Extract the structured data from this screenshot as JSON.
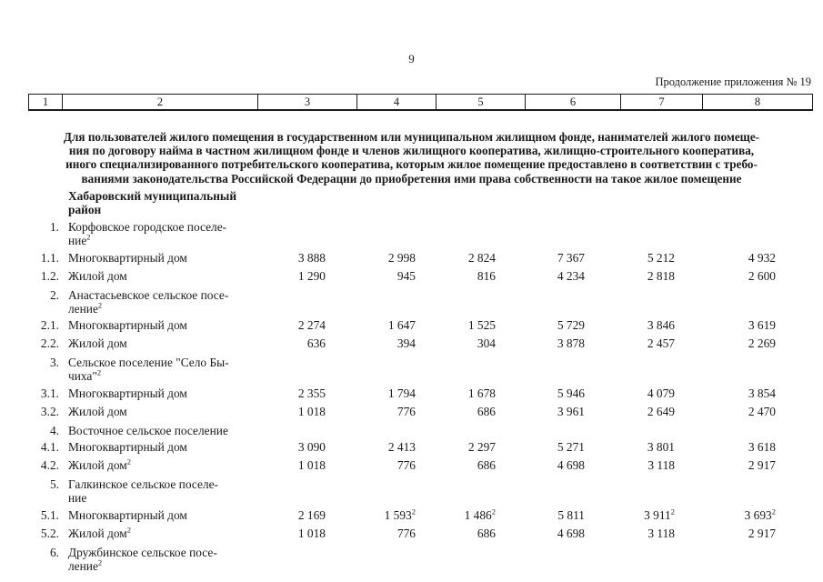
{
  "page": {
    "number": "9",
    "continuation": "Продолжение приложения № 19"
  },
  "header_row": [
    "1",
    "2",
    "3",
    "4",
    "5",
    "6",
    "7",
    "8"
  ],
  "intro": [
    "Для пользователей жилого помещения в государственном или муниципальном жилищном фонде, нанимателей жилого помеще-",
    "ния по договору найма в частном жилищном фонде и членов жилищного кооператива, жилищно-строительного кооператива,",
    "иного специализированного потребительского кооператива, которым жилое помещение предоставлено в соответствии с требо-",
    "ваниями законодательства Российской Федерации до приобретения ими права собственности на такое жилое помещение"
  ],
  "table": {
    "rows": [
      {
        "type": "section",
        "bold": true,
        "num": "",
        "name_lines": [
          "Хабаровский муниципальный",
          "район"
        ],
        "values": []
      },
      {
        "type": "section",
        "num": "1.",
        "name_lines": [
          "Корфовское городское поселе-",
          "ние^2"
        ],
        "values": []
      },
      {
        "type": "data",
        "num": "1.1.",
        "name_lines": [
          "Многоквартирный дом"
        ],
        "values": [
          "3 888",
          "2 998",
          "2 824",
          "7 367",
          "5 212",
          "4 932"
        ]
      },
      {
        "type": "data",
        "num": "1.2.",
        "name_lines": [
          "Жилой дом"
        ],
        "values": [
          "1 290",
          "945",
          "816",
          "4 234",
          "2 818",
          "2 600"
        ]
      },
      {
        "type": "section",
        "num": "2.",
        "name_lines": [
          "Анастасьевское сельское посе-",
          "ление^2"
        ],
        "values": []
      },
      {
        "type": "data",
        "num": "2.1.",
        "name_lines": [
          "Многоквартирный дом"
        ],
        "values": [
          "2 274",
          "1 647",
          "1 525",
          "5 729",
          "3 846",
          "3 619"
        ]
      },
      {
        "type": "data",
        "num": "2.2.",
        "name_lines": [
          "Жилой дом"
        ],
        "values": [
          "636",
          "394",
          "304",
          "3 878",
          "2 457",
          "2 269"
        ]
      },
      {
        "type": "section",
        "num": "3.",
        "name_lines": [
          "Сельское поселение \"Село Бы-",
          "чиха\"^2"
        ],
        "values": []
      },
      {
        "type": "data",
        "num": "3.1.",
        "name_lines": [
          "Многоквартирный дом"
        ],
        "values": [
          "2 355",
          "1 794",
          "1 678",
          "5 946",
          "4 079",
          "3 854"
        ]
      },
      {
        "type": "data",
        "num": "3.2.",
        "name_lines": [
          "Жилой дом"
        ],
        "values": [
          "1 018",
          "776",
          "686",
          "3 961",
          "2 649",
          "2 470"
        ]
      },
      {
        "type": "section",
        "num": "4.",
        "name_lines": [
          "Восточное сельское поселение"
        ],
        "values": []
      },
      {
        "type": "data",
        "num": "4.1.",
        "name_lines": [
          "Многоквартирный дом"
        ],
        "values": [
          "3 090",
          "2 413",
          "2 297",
          "5 271",
          "3 801",
          "3 618"
        ]
      },
      {
        "type": "data",
        "num": "4.2.",
        "name_lines": [
          "Жилой дом^2"
        ],
        "values": [
          "1 018",
          "776",
          "686",
          "4 698",
          "3 118",
          "2 917"
        ]
      },
      {
        "type": "section",
        "num": "5.",
        "name_lines": [
          "Галкинское сельское поселе-",
          "ние"
        ],
        "values": []
      },
      {
        "type": "data",
        "num": "5.1.",
        "name_lines": [
          "Многоквартирный дом"
        ],
        "values": [
          "2 169",
          "1 593^2",
          "1 486^2",
          "5 811",
          "3 911^2",
          "3 693^2"
        ]
      },
      {
        "type": "data",
        "num": "5.2.",
        "name_lines": [
          "Жилой дом^2"
        ],
        "values": [
          "1 018",
          "776",
          "686",
          "4 698",
          "3 118",
          "2 917"
        ]
      },
      {
        "type": "section",
        "num": "6.",
        "name_lines": [
          "Дружбинское сельское посе-",
          "ление^2"
        ],
        "values": []
      }
    ]
  }
}
